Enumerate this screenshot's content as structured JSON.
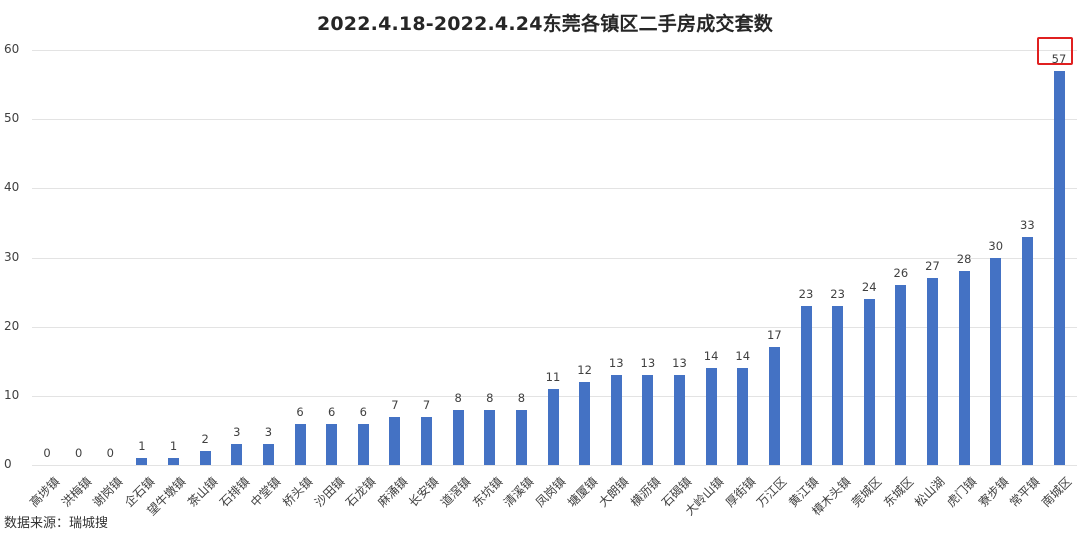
{
  "chart_data": {
    "type": "bar",
    "title": "2022.4.18-2022.4.24东莞各镇区二手房成交套数",
    "xlabel": "",
    "ylabel": "",
    "ylim": [
      0,
      60
    ],
    "yticks": [
      0,
      10,
      20,
      30,
      40,
      50,
      60
    ],
    "grid": true,
    "legend": null,
    "bar_color": "#4472c4",
    "categories": [
      "高埗镇",
      "洪梅镇",
      "谢岗镇",
      "企石镇",
      "望牛墩镇",
      "茶山镇",
      "石排镇",
      "中堂镇",
      "桥头镇",
      "沙田镇",
      "石龙镇",
      "麻涌镇",
      "长安镇",
      "道滘镇",
      "东坑镇",
      "清溪镇",
      "凤岗镇",
      "塘厦镇",
      "大朗镇",
      "横沥镇",
      "石碣镇",
      "大岭山镇",
      "厚街镇",
      "万江区",
      "黄江镇",
      "樟木头镇",
      "莞城区",
      "东城区",
      "松山湖",
      "虎门镇",
      "寮步镇",
      "常平镇",
      "南城区"
    ],
    "values": [
      0,
      0,
      0,
      1,
      1,
      2,
      3,
      3,
      6,
      6,
      6,
      7,
      7,
      8,
      8,
      8,
      11,
      12,
      13,
      13,
      13,
      14,
      14,
      17,
      23,
      23,
      24,
      26,
      27,
      28,
      30,
      33,
      57
    ],
    "annotations": [
      {
        "category": "南城区",
        "value": 57,
        "style": "red box highlight"
      }
    ]
  },
  "source": "数据来源：瑞城搜"
}
